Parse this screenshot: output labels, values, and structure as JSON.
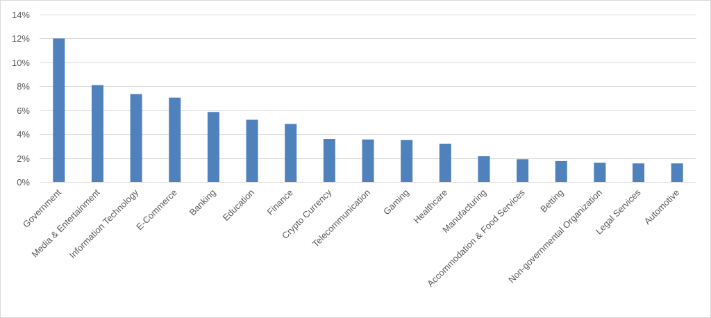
{
  "chart_data": {
    "type": "bar",
    "title": "",
    "xlabel": "",
    "ylabel": "",
    "categories": [
      "Government",
      "Media & Entertainment",
      "Information Technology",
      "E-Commerce",
      "Banking",
      "Education",
      "Finance",
      "Crypto Currency",
      "Telecommunication",
      "Gaming",
      "Healthcare",
      "Manufacturing",
      "Accommodation & Food Services",
      "Betting",
      "Non-governmental Organization",
      "Legal Services",
      "Automotive"
    ],
    "series": [
      {
        "values": [
          12.0,
          8.1,
          7.35,
          7.05,
          5.85,
          5.2,
          4.85,
          3.6,
          3.55,
          3.5,
          3.2,
          2.15,
          1.9,
          1.75,
          1.6,
          1.55,
          1.55
        ],
        "color": "#4f81bd"
      }
    ],
    "ylim": [
      0,
      14
    ],
    "yticks": [
      0,
      2,
      4,
      6,
      8,
      10,
      12,
      14
    ],
    "ytick_format": "percent",
    "grid": true,
    "legend": "none",
    "gridline_color": "#d9d9d9",
    "axis_text_color": "#595959"
  }
}
